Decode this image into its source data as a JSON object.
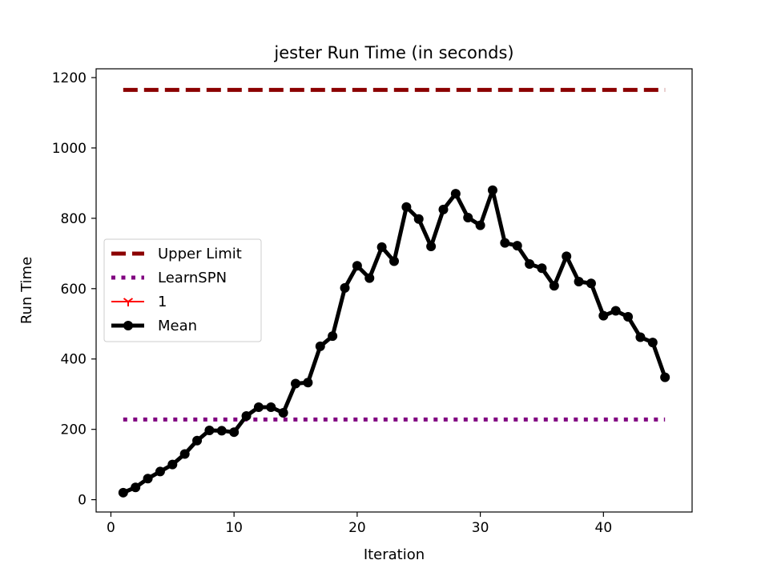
{
  "chart_data": {
    "type": "line",
    "title": "jester Run Time (in seconds)",
    "xlabel": "Iteration",
    "ylabel": "Run Time",
    "xlim": [
      -1.2,
      47.2
    ],
    "ylim": [
      -35,
      1225
    ],
    "xticks": [
      0,
      10,
      20,
      30,
      40
    ],
    "yticks": [
      0,
      200,
      400,
      600,
      800,
      1000,
      1200
    ],
    "grid": false,
    "legend_position": "center-left",
    "series": [
      {
        "name": "Upper Limit",
        "style": "dashed",
        "color": "#8b0000",
        "x": [
          1,
          45
        ],
        "y": [
          1165,
          1165
        ]
      },
      {
        "name": "LearnSPN",
        "style": "dotted",
        "color": "#800080",
        "x": [
          1,
          45
        ],
        "y": [
          228,
          228
        ]
      },
      {
        "name": "1",
        "style": "solid",
        "marker": "tri_down",
        "color": "#ff0000",
        "x": [],
        "y": []
      },
      {
        "name": "Mean",
        "style": "solid",
        "marker": "circle",
        "color": "#000000",
        "x": [
          1,
          2,
          3,
          4,
          5,
          6,
          7,
          8,
          9,
          10,
          11,
          12,
          13,
          14,
          15,
          16,
          17,
          18,
          19,
          20,
          21,
          22,
          23,
          24,
          25,
          26,
          27,
          28,
          29,
          30,
          31,
          32,
          33,
          34,
          35,
          36,
          37,
          38,
          39,
          40,
          41,
          42,
          43,
          44,
          45
        ],
        "y": [
          20,
          35,
          60,
          80,
          100,
          130,
          168,
          197,
          196,
          192,
          238,
          263,
          263,
          247,
          330,
          333,
          436,
          465,
          602,
          665,
          630,
          718,
          678,
          832,
          798,
          720,
          825,
          870,
          802,
          780,
          880,
          730,
          722,
          670,
          658,
          608,
          692,
          620,
          615,
          523,
          537,
          520,
          462,
          447,
          348
        ]
      }
    ]
  }
}
